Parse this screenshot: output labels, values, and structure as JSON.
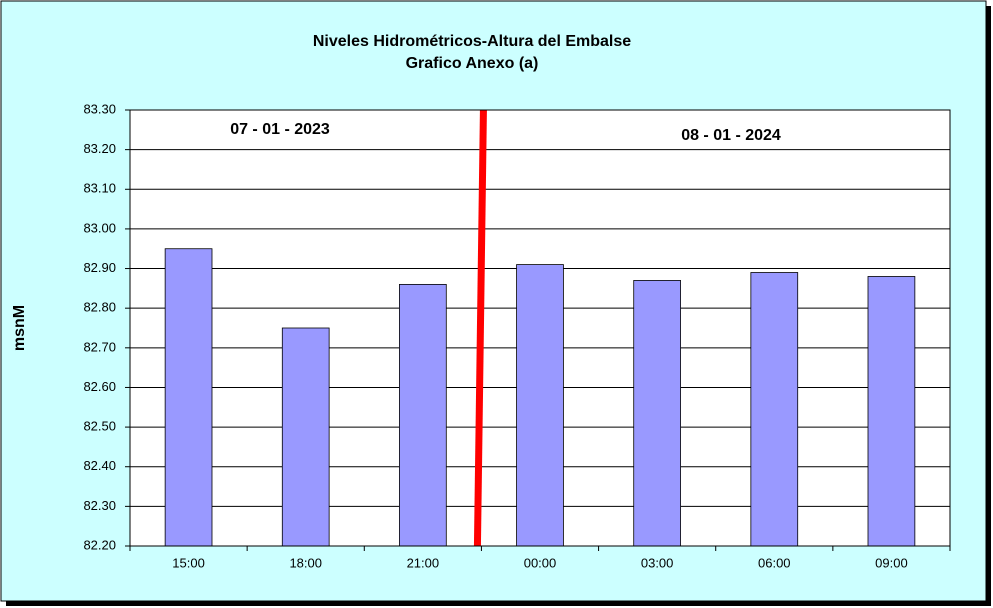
{
  "chart_data": {
    "type": "bar",
    "title": "Niveles Hidrométricos-Altura del Embalse",
    "subtitle": "Grafico Anexo (a)",
    "y_label": "msnM",
    "annotations": [
      "07 - 01 - 2023",
      "08 - 01 - 2024"
    ],
    "categories": [
      "15:00",
      "18:00",
      "21:00",
      "00:00",
      "03:00",
      "06:00",
      "09:00"
    ],
    "values": [
      82.95,
      82.75,
      82.86,
      82.91,
      82.87,
      82.89,
      82.88
    ],
    "color": "#9999ff",
    "ylim": [
      82.2,
      83.3
    ],
    "yticks": [
      {
        "value": 82.2,
        "label": "82.20"
      },
      {
        "value": 82.3,
        "label": "82.30"
      },
      {
        "value": 82.4,
        "label": "82.40"
      },
      {
        "value": 82.5,
        "label": "82.50"
      },
      {
        "value": 82.6,
        "label": "82.60"
      },
      {
        "value": 82.7,
        "label": "82.70"
      },
      {
        "value": 82.8,
        "label": "82.80"
      },
      {
        "value": 82.9,
        "label": "82.90"
      },
      {
        "value": 83.0,
        "label": "83.00"
      },
      {
        "value": 83.1,
        "label": "83.10"
      },
      {
        "value": 83.2,
        "label": "83.20"
      },
      {
        "value": 83.3,
        "label": "83.30"
      }
    ],
    "grid": true
  }
}
